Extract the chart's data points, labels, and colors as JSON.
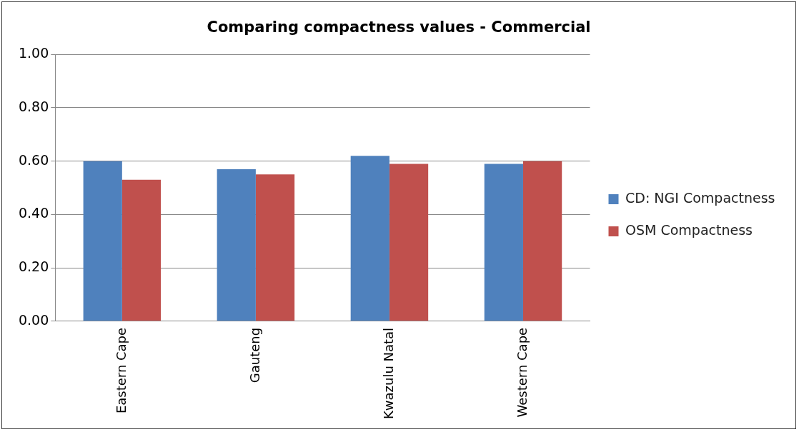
{
  "chart_data": {
    "type": "bar",
    "title": "Comparing compactness values - Commercial",
    "categories": [
      "Eastern Cape",
      "Gauteng",
      "Kwazulu Natal",
      "Western Cape"
    ],
    "series": [
      {
        "name": "CD: NGI Compactness",
        "color": "#4f81bd",
        "values": [
          0.6,
          0.57,
          0.62,
          0.59
        ]
      },
      {
        "name": "OSM Compactness",
        "color": "#c0504d",
        "values": [
          0.53,
          0.55,
          0.59,
          0.6
        ]
      }
    ],
    "ylim": [
      0,
      1
    ],
    "yticks": [
      {
        "value": 0,
        "label": "0.00"
      },
      {
        "value": 0.2,
        "label": "0.20"
      },
      {
        "value": 0.4,
        "label": "0.40"
      },
      {
        "value": 0.6,
        "label": "0.60"
      },
      {
        "value": 0.8,
        "label": "0.80"
      },
      {
        "value": 1,
        "label": "1.00"
      }
    ],
    "grid": "y",
    "legend": "right"
  }
}
